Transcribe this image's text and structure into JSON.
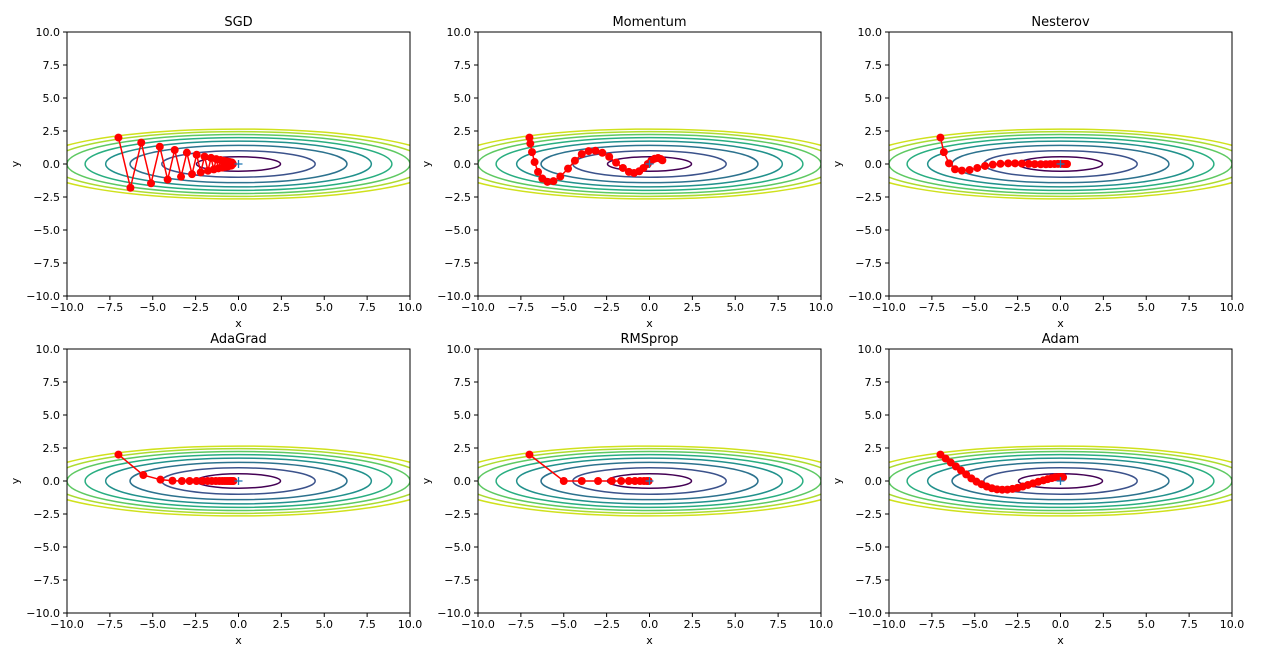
{
  "chart_data": [
    {
      "type": "line",
      "title": "SGD",
      "xlabel": "x",
      "ylabel": "y",
      "xlim": [
        -10,
        10
      ],
      "ylim": [
        -10,
        10
      ],
      "xticks": [
        "−10.0",
        "−7.5",
        "−5.0",
        "−2.5",
        "0.0",
        "2.5",
        "5.0",
        "7.5",
        "10.0"
      ],
      "yticks": [
        "10.0",
        "7.5",
        "5.0",
        "2.5",
        "0.0",
        "−2.5",
        "−5.0",
        "−7.5",
        "−10.0"
      ],
      "minimum_marker": [
        0,
        0
      ],
      "path": {
        "x": [
          -7.0,
          -6.3,
          -5.67,
          -5.1,
          -4.59,
          -4.13,
          -3.72,
          -3.35,
          -3.01,
          -2.71,
          -2.44,
          -2.2,
          -1.98,
          -1.78,
          -1.6,
          -1.44,
          -1.3,
          -1.17,
          -1.05,
          -0.95,
          -0.85,
          -0.77,
          -0.69,
          -0.62,
          -0.56,
          -0.5,
          -0.45,
          -0.41,
          -0.37,
          -0.33
        ],
        "y": [
          2.0,
          -1.8,
          1.62,
          -1.46,
          1.31,
          -1.18,
          1.06,
          -0.96,
          0.86,
          -0.77,
          0.7,
          -0.63,
          0.56,
          -0.51,
          0.46,
          -0.41,
          0.37,
          -0.33,
          0.3,
          -0.27,
          0.24,
          -0.22,
          0.2,
          -0.18,
          0.16,
          -0.14,
          0.13,
          -0.12,
          0.1,
          0.0
        ]
      }
    },
    {
      "type": "line",
      "title": "Momentum",
      "xlabel": "x",
      "ylabel": "y",
      "xlim": [
        -10,
        10
      ],
      "ylim": [
        -10,
        10
      ],
      "xticks": [
        "−10.0",
        "−7.5",
        "−5.0",
        "−2.5",
        "0.0",
        "2.5",
        "5.0",
        "7.5",
        "10.0"
      ],
      "yticks": [
        "10.0",
        "7.5",
        "5.0",
        "2.5",
        "0.0",
        "−2.5",
        "−5.0",
        "−7.5",
        "−10.0"
      ],
      "minimum_marker": [
        0,
        0
      ],
      "path": {
        "x": [
          -7.0,
          -6.95,
          -6.85,
          -6.7,
          -6.5,
          -6.25,
          -5.95,
          -5.6,
          -5.2,
          -4.75,
          -4.35,
          -3.95,
          -3.55,
          -3.15,
          -2.75,
          -2.35,
          -1.95,
          -1.55,
          -1.2,
          -0.9,
          -0.6,
          -0.35,
          -0.1,
          0.1,
          0.3,
          0.5,
          0.65,
          0.75
        ],
        "y": [
          2.0,
          1.55,
          0.9,
          0.15,
          -0.6,
          -1.1,
          -1.35,
          -1.3,
          -0.95,
          -0.35,
          0.25,
          0.75,
          0.98,
          1.0,
          0.85,
          0.55,
          0.1,
          -0.3,
          -0.6,
          -0.68,
          -0.55,
          -0.3,
          0.0,
          0.25,
          0.4,
          0.45,
          0.38,
          0.28
        ]
      }
    },
    {
      "type": "line",
      "title": "Nesterov",
      "xlabel": "x",
      "ylabel": "y",
      "xlim": [
        -10,
        10
      ],
      "ylim": [
        -10,
        10
      ],
      "xticks": [
        "−10.0",
        "−7.5",
        "−5.0",
        "−2.5",
        "0.0",
        "2.5",
        "5.0",
        "7.5",
        "10.0"
      ],
      "yticks": [
        "10.0",
        "7.5",
        "5.0",
        "2.5",
        "0.0",
        "−2.5",
        "−5.0",
        "−7.5",
        "−10.0"
      ],
      "minimum_marker": [
        0,
        0
      ],
      "path": {
        "x": [
          -7.0,
          -6.8,
          -6.5,
          -6.15,
          -5.75,
          -5.3,
          -4.85,
          -4.4,
          -3.95,
          -3.5,
          -3.05,
          -2.65,
          -2.25,
          -1.85,
          -1.5,
          -1.15,
          -0.85,
          -0.6,
          -0.35,
          -0.15,
          0.05,
          0.2,
          0.3,
          0.38
        ],
        "y": [
          2.0,
          0.9,
          0.05,
          -0.4,
          -0.5,
          -0.45,
          -0.3,
          -0.15,
          -0.05,
          0.02,
          0.05,
          0.05,
          0.03,
          0.01,
          -0.01,
          -0.02,
          -0.02,
          -0.01,
          0.0,
          0.01,
          0.01,
          0.0,
          0.0,
          0.0
        ]
      }
    },
    {
      "type": "line",
      "title": "AdaGrad",
      "xlabel": "x",
      "ylabel": "y",
      "xlim": [
        -10,
        10
      ],
      "ylim": [
        -10,
        10
      ],
      "xticks": [
        "−10.0",
        "−7.5",
        "−5.0",
        "−2.5",
        "0.0",
        "2.5",
        "5.0",
        "7.5",
        "10.0"
      ],
      "yticks": [
        "10.0",
        "7.5",
        "5.0",
        "2.5",
        "0.0",
        "−2.5",
        "−5.0",
        "−7.5",
        "−10.0"
      ],
      "minimum_marker": [
        0,
        0
      ],
      "path": {
        "x": [
          -7.0,
          -5.55,
          -4.55,
          -3.85,
          -3.3,
          -2.85,
          -2.45,
          -2.1,
          -1.8,
          -1.55,
          -1.32,
          -1.12,
          -0.95,
          -0.8,
          -0.67,
          -0.55,
          -0.45,
          -0.37,
          -0.3
        ],
        "y": [
          2.0,
          0.45,
          0.1,
          0.02,
          0.0,
          0.0,
          0.0,
          0.0,
          0.0,
          0.0,
          0.0,
          0.0,
          0.0,
          0.0,
          0.0,
          0.0,
          0.0,
          0.0,
          0.0
        ]
      }
    },
    {
      "type": "line",
      "title": "RMSprop",
      "xlabel": "x",
      "ylabel": "y",
      "xlim": [
        -10,
        10
      ],
      "ylim": [
        -10,
        10
      ],
      "xticks": [
        "−10.0",
        "−7.5",
        "−5.0",
        "−2.5",
        "0.0",
        "2.5",
        "5.0",
        "7.5",
        "10.0"
      ],
      "yticks": [
        "10.0",
        "7.5",
        "5.0",
        "2.5",
        "0.0",
        "−2.5",
        "−5.0",
        "−7.5",
        "−10.0"
      ],
      "minimum_marker": [
        0,
        0
      ],
      "path": {
        "x": [
          -7.0,
          -5.0,
          -3.95,
          -3.0,
          -2.2,
          -1.65,
          -1.2,
          -0.85,
          -0.55,
          -0.32,
          -0.15,
          -0.05
        ],
        "y": [
          2.0,
          0.0,
          0.0,
          0.0,
          0.0,
          0.0,
          0.0,
          0.0,
          0.0,
          0.0,
          0.0,
          0.0
        ]
      }
    },
    {
      "type": "line",
      "title": "Adam",
      "xlabel": "x",
      "ylabel": "y",
      "xlim": [
        -10,
        10
      ],
      "ylim": [
        -10,
        10
      ],
      "xticks": [
        "−10.0",
        "−7.5",
        "−5.0",
        "−2.5",
        "0.0",
        "2.5",
        "5.0",
        "7.5",
        "10.0"
      ],
      "yticks": [
        "10.0",
        "7.5",
        "5.0",
        "2.5",
        "0.0",
        "−2.5",
        "−5.0",
        "−7.5",
        "−10.0"
      ],
      "minimum_marker": [
        0,
        0
      ],
      "path": {
        "x": [
          -7.0,
          -6.7,
          -6.4,
          -6.1,
          -5.8,
          -5.5,
          -5.2,
          -4.9,
          -4.6,
          -4.3,
          -4.0,
          -3.7,
          -3.4,
          -3.1,
          -2.8,
          -2.5,
          -2.2,
          -1.9,
          -1.6,
          -1.3,
          -1.0,
          -0.75,
          -0.5,
          -0.3,
          -0.1,
          0.05,
          0.15
        ],
        "y": [
          2.0,
          1.7,
          1.4,
          1.1,
          0.8,
          0.5,
          0.2,
          -0.05,
          -0.25,
          -0.42,
          -0.55,
          -0.63,
          -0.66,
          -0.65,
          -0.6,
          -0.52,
          -0.42,
          -0.3,
          -0.18,
          -0.06,
          0.05,
          0.14,
          0.22,
          0.28,
          0.3,
          0.3,
          0.28
        ]
      }
    }
  ]
}
